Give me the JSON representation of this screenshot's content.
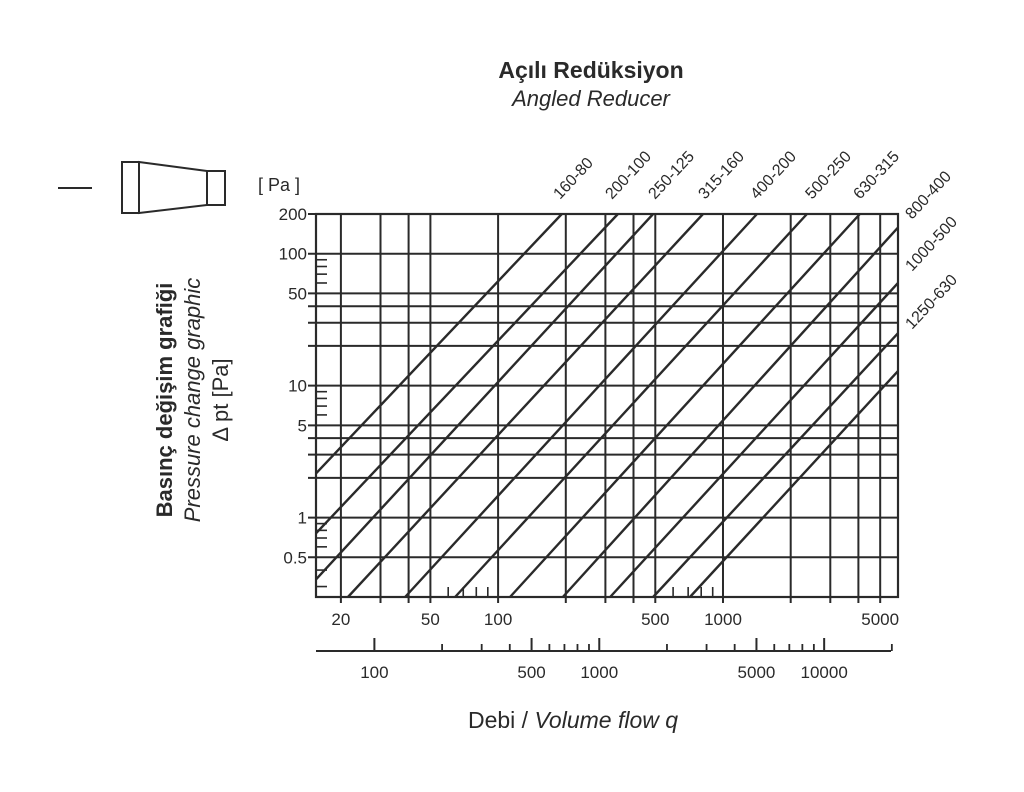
{
  "title": "Açılı Redüksiyon",
  "subtitle": "Angled Reducer",
  "y_unit_label": "[ Pa ]",
  "y_label": {
    "line1": "Basınç değişim grafiği",
    "line2": "Pressure change graphic",
    "line3": "Δ pt [Pa]"
  },
  "x_label": {
    "part1": "Debi / ",
    "part2": "Volume flow q"
  },
  "icon": "angled-reducer-icon",
  "colors": {
    "ink": "#222222",
    "background": "#ffffff"
  },
  "chart_data": {
    "type": "line",
    "x_scale": "log",
    "y_scale": "log",
    "xlim": [
      15.5,
      6000
    ],
    "ylim": [
      0.25,
      200
    ],
    "grid": true,
    "y_ticks": [
      200,
      100,
      50,
      10,
      5,
      1,
      0.5
    ],
    "y_tick_labels": [
      "200",
      "100",
      "50",
      "10",
      "5",
      "1",
      "0.5"
    ],
    "y_gridlines": [
      200,
      100,
      50,
      40,
      30,
      20,
      10,
      5,
      4,
      3,
      2,
      1,
      0.5
    ],
    "x_gridlines": [
      20,
      30,
      40,
      50,
      100,
      200,
      300,
      400,
      500,
      1000,
      2000,
      3000,
      4000,
      5000
    ],
    "x_ticks": [
      20,
      50,
      100,
      500,
      1000,
      5000
    ],
    "x_tick_labels": [
      "20",
      "50",
      "100",
      "500",
      "1000",
      "5000"
    ],
    "secondary_x_axis": {
      "xlim": [
        55,
        21300
      ],
      "major_ticks": [
        100,
        500,
        1000,
        5000,
        10000
      ],
      "major_tick_labels": [
        "100",
        "500",
        "1000",
        "5000",
        "10000"
      ],
      "minor_ticks": [
        200,
        300,
        400,
        600,
        700,
        800,
        900,
        2000,
        3000,
        4000,
        6000,
        7000,
        8000,
        9000,
        20000
      ]
    },
    "series": [
      {
        "name": "160-80",
        "points": [
          [
            15.5,
            2.16
          ],
          [
            192,
            200
          ]
        ]
      },
      {
        "name": "200-100",
        "points": [
          [
            15.5,
            0.76
          ],
          [
            341,
            200
          ]
        ]
      },
      {
        "name": "250-125",
        "points": [
          [
            15.5,
            0.34
          ],
          [
            489,
            200
          ]
        ]
      },
      {
        "name": "315-160",
        "points": [
          [
            21.5,
            0.25
          ],
          [
            815,
            200
          ]
        ]
      },
      {
        "name": "400-200",
        "points": [
          [
            38.6,
            0.25
          ],
          [
            1416,
            200
          ]
        ]
      },
      {
        "name": "500-250",
        "points": [
          [
            64.4,
            0.25
          ],
          [
            2362,
            200
          ]
        ]
      },
      {
        "name": "630-315",
        "points": [
          [
            113,
            0.25
          ],
          [
            4060,
            200
          ]
        ]
      },
      {
        "name": "800-400",
        "points": [
          [
            194,
            0.25
          ],
          [
            6000,
            158
          ]
        ]
      },
      {
        "name": "1000-500",
        "points": [
          [
            315,
            0.25
          ],
          [
            6000,
            60
          ]
        ]
      },
      {
        "name": "1250-630",
        "points": [
          [
            489,
            0.25
          ],
          [
            6000,
            25
          ]
        ]
      },
      {
        "points": [
          [
            713,
            0.25
          ],
          [
            6000,
            12.9
          ]
        ]
      }
    ]
  }
}
